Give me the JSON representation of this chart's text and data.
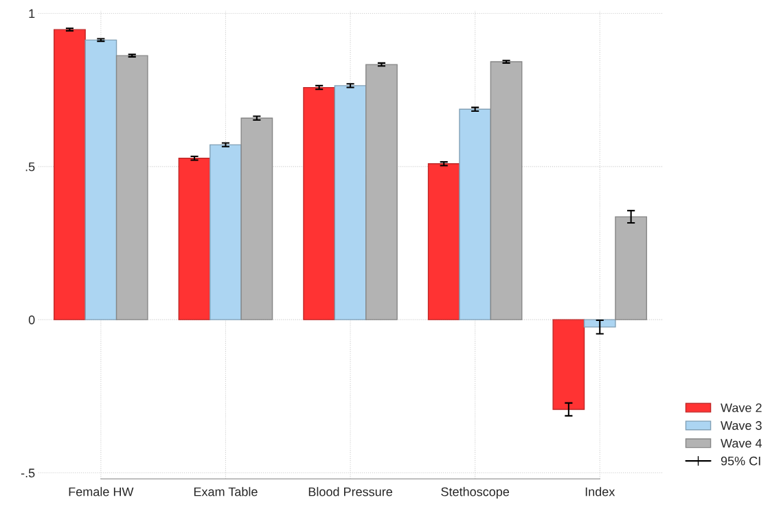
{
  "chart_data": {
    "type": "bar",
    "categories": [
      "Female HW",
      "Exam Table",
      "Blood Pressure",
      "Stethoscope",
      "Index"
    ],
    "series": [
      {
        "name": "Wave 2",
        "color": "#ff3333",
        "values": [
          0.947,
          0.527,
          0.758,
          0.509,
          -0.293
        ],
        "errors": [
          0.004,
          0.006,
          0.006,
          0.006,
          0.021
        ]
      },
      {
        "name": "Wave 3",
        "color": "#acd5f2",
        "values": [
          0.913,
          0.571,
          0.764,
          0.687,
          -0.024
        ],
        "errors": [
          0.004,
          0.006,
          0.006,
          0.006,
          0.022
        ]
      },
      {
        "name": "Wave 4",
        "color": "#b3b3b3",
        "values": [
          0.862,
          0.658,
          0.833,
          0.842,
          0.336
        ],
        "errors": [
          0.004,
          0.006,
          0.005,
          0.004,
          0.02
        ]
      }
    ],
    "ylim": [
      -0.52,
      1.01
    ],
    "yticks": [
      {
        "value": -0.5,
        "label": "-.5"
      },
      0,
      {
        "value": 0.5,
        "label": ".5"
      },
      1
    ],
    "grid": true,
    "legend": "bottom right",
    "annotations": [
      "95% CI"
    ]
  }
}
